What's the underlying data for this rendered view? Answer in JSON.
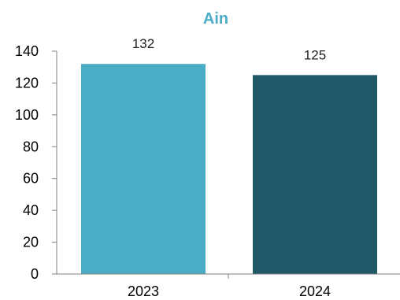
{
  "chart_data": {
    "type": "bar",
    "title": "Ain",
    "xlabel": "",
    "ylabel": "",
    "categories": [
      "2023",
      "2024"
    ],
    "values": [
      132,
      125
    ],
    "data_labels": [
      "132",
      "125"
    ],
    "ylim": [
      0,
      140
    ],
    "yticks": [
      "0",
      "20",
      "40",
      "60",
      "80",
      "100",
      "120",
      "140"
    ],
    "ytick_values": [
      0,
      20,
      40,
      60,
      80,
      100,
      120,
      140
    ],
    "grid": false,
    "legend": "none",
    "colors": {
      "title": "#4BACC6",
      "bars": [
        "#4BACC6",
        "#215968"
      ],
      "axis": "#7f7f7f"
    }
  }
}
